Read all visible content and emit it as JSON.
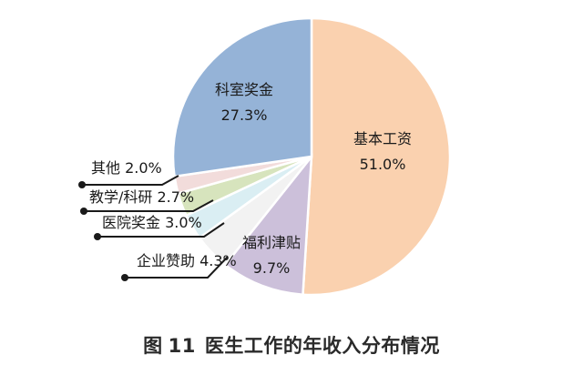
{
  "figure": {
    "prefix": "图",
    "number": "11",
    "title": "医生工作的年收入分布情况"
  },
  "chart_data": {
    "type": "pie",
    "slices": [
      {
        "label": "基本工资",
        "value": 51.0,
        "display": "51.0%",
        "color": "#FAD1AF"
      },
      {
        "label": "福利津贴",
        "value": 9.7,
        "display": "9.7%",
        "color": "#CCC0DA"
      },
      {
        "label": "企业赞助",
        "value": 4.3,
        "display": "4.3%",
        "color": "#F2F2F2"
      },
      {
        "label": "医院奖金",
        "value": 3.0,
        "display": "3.0%",
        "color": "#DAEEF3"
      },
      {
        "label": "教学/科研",
        "value": 2.7,
        "display": "2.7%",
        "color": "#D7E4BD"
      },
      {
        "label": "其他",
        "value": 2.0,
        "display": "2.0%",
        "color": "#F2DCDB"
      },
      {
        "label": "科室奖金",
        "value": 27.3,
        "display": "27.3%",
        "color": "#95B3D7"
      }
    ]
  }
}
